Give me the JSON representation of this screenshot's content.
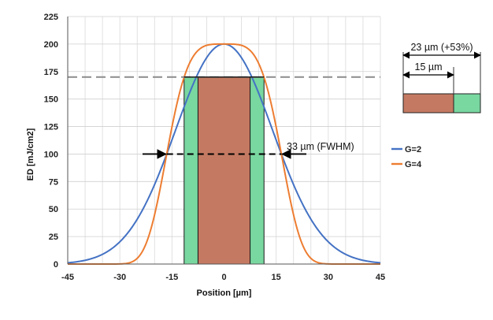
{
  "chart_data": {
    "type": "line",
    "title": "",
    "xlabel": "Position [µm]",
    "ylabel": "ED [mJ/cm2]",
    "xlim": [
      -45,
      45
    ],
    "ylim": [
      0,
      225
    ],
    "xticks": [
      -45,
      -30,
      -15,
      0,
      15,
      30,
      45
    ],
    "yticks": [
      0,
      25,
      50,
      75,
      100,
      125,
      150,
      175,
      200,
      225
    ],
    "grid": true,
    "legend_position": "right",
    "series": [
      {
        "name": "G=2",
        "color": "#4472C4",
        "peak": 200,
        "fwhm": 33,
        "order": 2
      },
      {
        "name": "G=4",
        "color": "#ED7D31",
        "peak": 200,
        "fwhm": 33,
        "order": 4
      }
    ],
    "threshold_line": {
      "y": 170,
      "color": "#8C8C8C"
    },
    "bars": [
      {
        "role": "center",
        "x_start": -7.5,
        "x_end": 7.5,
        "y": 170,
        "color": "#C47A62"
      },
      {
        "role": "side-left",
        "x_start": -11.5,
        "x_end": -7.5,
        "y": 170,
        "color": "#79D7A0"
      },
      {
        "role": "side-right",
        "x_start": 7.5,
        "x_end": 11.5,
        "y": 170,
        "color": "#79D7A0"
      }
    ],
    "fwhm_marker": {
      "y": 100,
      "x_start": -16.5,
      "x_end": 16.5
    },
    "annotations": {
      "fwhm_label": "33 µm (FWHM)",
      "inset_total_label": "23 µm (+53%)",
      "inset_center_label": "15 µm"
    },
    "inset": {
      "center_width": 15,
      "total_width": 23,
      "center_color": "#C47A62",
      "side_color": "#79D7A0"
    }
  }
}
